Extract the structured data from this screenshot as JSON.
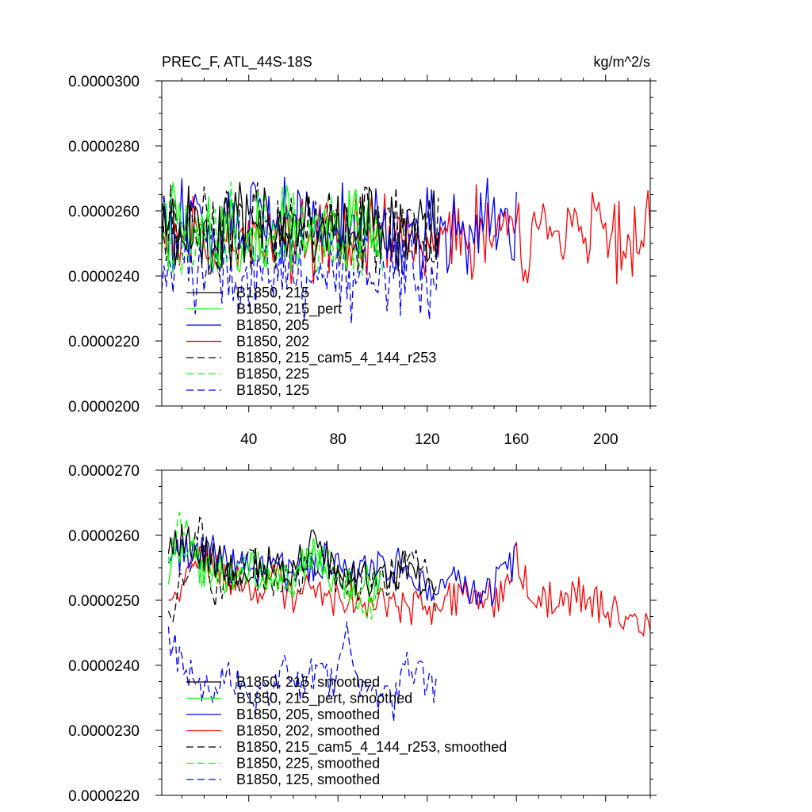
{
  "chart_data": [
    {
      "type": "line",
      "title": "PREC_F, ATL_44S-18S",
      "units": "kg/m^2/s",
      "xlabel": "",
      "ylabel": "",
      "xlim": [
        1,
        220
      ],
      "ylim": [
        2e-05,
        3e-05
      ],
      "yticks": [
        "0.0000300",
        "0.0000280",
        "0.0000260",
        "0.0000240",
        "0.0000220",
        "0.0000200"
      ],
      "xticks": [
        "40",
        "80",
        "120",
        "160",
        "200"
      ],
      "legend_position": "bottom-left, inside plot",
      "series": [
        {
          "name": "B1850, 215",
          "color": "#000000",
          "dash": "solid",
          "length": 125,
          "mean": 2.55e-05,
          "amp": 1.2e-06
        },
        {
          "name": "B1850, 215_pert",
          "color": "#00ff00",
          "dash": "solid",
          "length": 100,
          "mean": 2.54e-05,
          "amp": 1.2e-06
        },
        {
          "name": "B1850, 205",
          "color": "#0000ff",
          "dash": "solid",
          "length": 160,
          "mean": 2.54e-05,
          "amp": 1.2e-06
        },
        {
          "name": "B1850, 202",
          "color": "#ff0000",
          "dash": "solid",
          "length": 220,
          "mean": 2.52e-05,
          "amp": 1.2e-06
        },
        {
          "name": "B1850, 215_cam5_4_144_r253",
          "color": "#000000",
          "dash": "dashed",
          "length": 125,
          "mean": 2.54e-05,
          "amp": 1.2e-06
        },
        {
          "name": "B1850, 225",
          "color": "#00ff00",
          "dash": "dashed",
          "length": 100,
          "mean": 2.53e-05,
          "amp": 1.2e-06
        },
        {
          "name": "B1850, 125",
          "color": "#0000ff",
          "dash": "dashed",
          "length": 125,
          "mean": 2.41e-05,
          "amp": 1.2e-06
        }
      ]
    },
    {
      "type": "line",
      "title": "",
      "units": "",
      "xlim": [
        1,
        220
      ],
      "ylim": [
        2.2e-05,
        2.7e-05
      ],
      "yticks": [
        "0.0000270",
        "0.0000260",
        "0.0000250",
        "0.0000240",
        "0.0000230",
        "0.0000220"
      ],
      "legend_position": "bottom-left, inside plot",
      "series": [
        {
          "name": "B1850, 215, smoothed",
          "color": "#000000",
          "dash": "solid",
          "x": [
            4,
            10,
            20,
            30,
            40,
            50,
            60,
            70,
            80,
            90,
            100,
            110,
            124
          ],
          "values": [
            2.58e-05,
            2.59e-05,
            2.57e-05,
            2.55e-05,
            2.55e-05,
            2.56e-05,
            2.54e-05,
            2.6e-05,
            2.53e-05,
            2.53e-05,
            2.53e-05,
            2.55e-05,
            2.52e-05
          ]
        },
        {
          "name": "B1850, 215_pert, smoothed",
          "color": "#00ff00",
          "dash": "solid",
          "x": [
            4,
            10,
            20,
            30,
            40,
            50,
            60,
            70,
            80,
            90,
            100
          ],
          "values": [
            2.53e-05,
            2.59e-05,
            2.54e-05,
            2.54e-05,
            2.55e-05,
            2.53e-05,
            2.54e-05,
            2.56e-05,
            2.53e-05,
            2.53e-05,
            2.52e-05
          ]
        },
        {
          "name": "B1850, 205, smoothed",
          "color": "#0000ff",
          "dash": "solid",
          "x": [
            4,
            15,
            25,
            40,
            50,
            60,
            75,
            90,
            110,
            125,
            135,
            145,
            155,
            160
          ],
          "values": [
            2.56e-05,
            2.58e-05,
            2.57e-05,
            2.54e-05,
            2.56e-05,
            2.53e-05,
            2.56e-05,
            2.54e-05,
            2.56e-05,
            2.5e-05,
            2.54e-05,
            2.5e-05,
            2.54e-05,
            2.57e-05
          ]
        },
        {
          "name": "B1850, 202, smoothed",
          "color": "#ff0000",
          "dash": "solid",
          "x": [
            4,
            15,
            25,
            40,
            50,
            60,
            70,
            80,
            100,
            120,
            135,
            150,
            160,
            170,
            180,
            190,
            200,
            210,
            220
          ],
          "values": [
            2.5e-05,
            2.56e-05,
            2.55e-05,
            2.51e-05,
            2.54e-05,
            2.5e-05,
            2.53e-05,
            2.5e-05,
            2.5e-05,
            2.48e-05,
            2.51e-05,
            2.5e-05,
            2.56e-05,
            2.5e-05,
            2.5e-05,
            2.51e-05,
            2.48e-05,
            2.48e-05,
            2.47e-05
          ]
        },
        {
          "name": "B1850, 215_cam5_4_144_r253, smoothed",
          "color": "#000000",
          "dash": "dashed",
          "x": [
            4,
            10,
            17,
            25,
            40,
            55,
            70,
            85,
            100,
            110,
            118,
            124
          ],
          "values": [
            2.48e-05,
            2.52e-05,
            2.62e-05,
            2.52e-05,
            2.55e-05,
            2.53e-05,
            2.55e-05,
            2.53e-05,
            2.53e-05,
            2.55e-05,
            2.56e-05,
            2.47e-05
          ]
        },
        {
          "name": "B1850, 225, smoothed",
          "color": "#00ff00",
          "dash": "dashed",
          "x": [
            4,
            10,
            20,
            30,
            40,
            50,
            60,
            70,
            80,
            90,
            100
          ],
          "values": [
            2.56e-05,
            2.62e-05,
            2.54e-05,
            2.54e-05,
            2.56e-05,
            2.54e-05,
            2.53e-05,
            2.58e-05,
            2.54e-05,
            2.49e-05,
            2.5e-05
          ]
        },
        {
          "name": "B1850, 125, smoothed",
          "color": "#0000ff",
          "dash": "dashed",
          "x": [
            4,
            8,
            15,
            22,
            30,
            38,
            45,
            50,
            55,
            60,
            65,
            72,
            78,
            84,
            90,
            95,
            100,
            105,
            110,
            118,
            124
          ],
          "values": [
            2.45e-05,
            2.41e-05,
            2.38e-05,
            2.36e-05,
            2.38e-05,
            2.36e-05,
            2.34e-05,
            2.36e-05,
            2.4e-05,
            2.38e-05,
            2.37e-05,
            2.4e-05,
            2.37e-05,
            2.45e-05,
            2.36e-05,
            2.34e-05,
            2.34e-05,
            2.34e-05,
            2.4e-05,
            2.38e-05,
            2.37e-05
          ]
        }
      ]
    }
  ]
}
